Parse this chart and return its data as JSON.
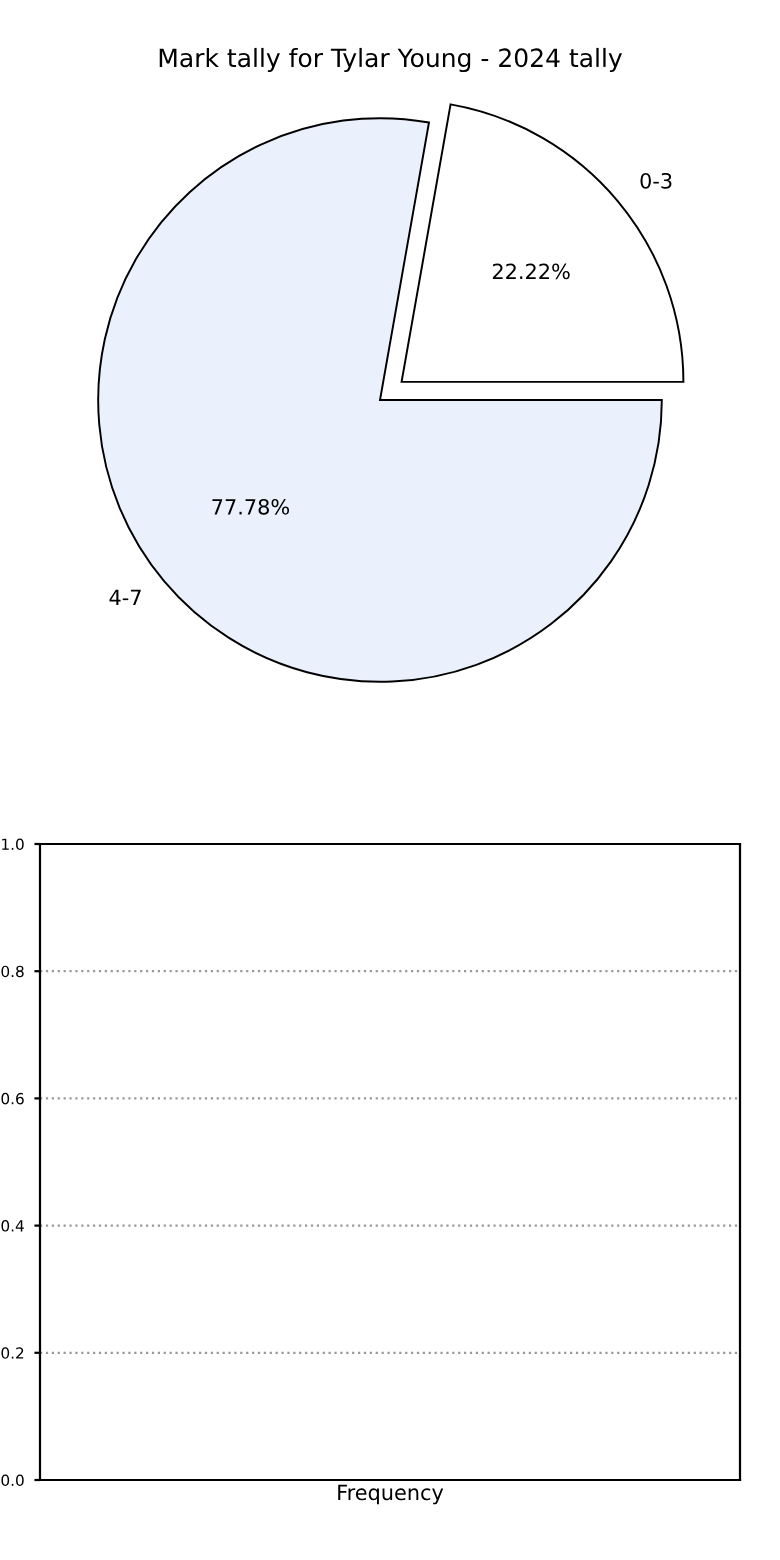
{
  "chart_data": [
    {
      "type": "pie",
      "title": "Mark tally for Tylar Young - 2024 tally",
      "categories": [
        "0-3",
        "4-7"
      ],
      "values": [
        22.22,
        77.78
      ],
      "colors": [
        "#ffffff",
        "#eaf0fc"
      ],
      "value_labels": [
        "22.22%",
        "77.78%"
      ],
      "legend": false
    },
    {
      "type": "bar",
      "xlabel": "Frequency",
      "categories": [
        null
      ],
      "values": [
        null
      ],
      "ylim": [
        0,
        1
      ],
      "yticks": [
        {
          "value": 0,
          "label": "0.0"
        },
        {
          "value": 0.2,
          "label": "0.2"
        },
        {
          "value": 0.4,
          "label": "0.4"
        },
        {
          "value": 0.6,
          "label": "0.6"
        },
        {
          "value": 0.8,
          "label": "0.8"
        },
        {
          "value": 1,
          "label": "1.0"
        }
      ],
      "grid": "y",
      "legend": false
    }
  ]
}
